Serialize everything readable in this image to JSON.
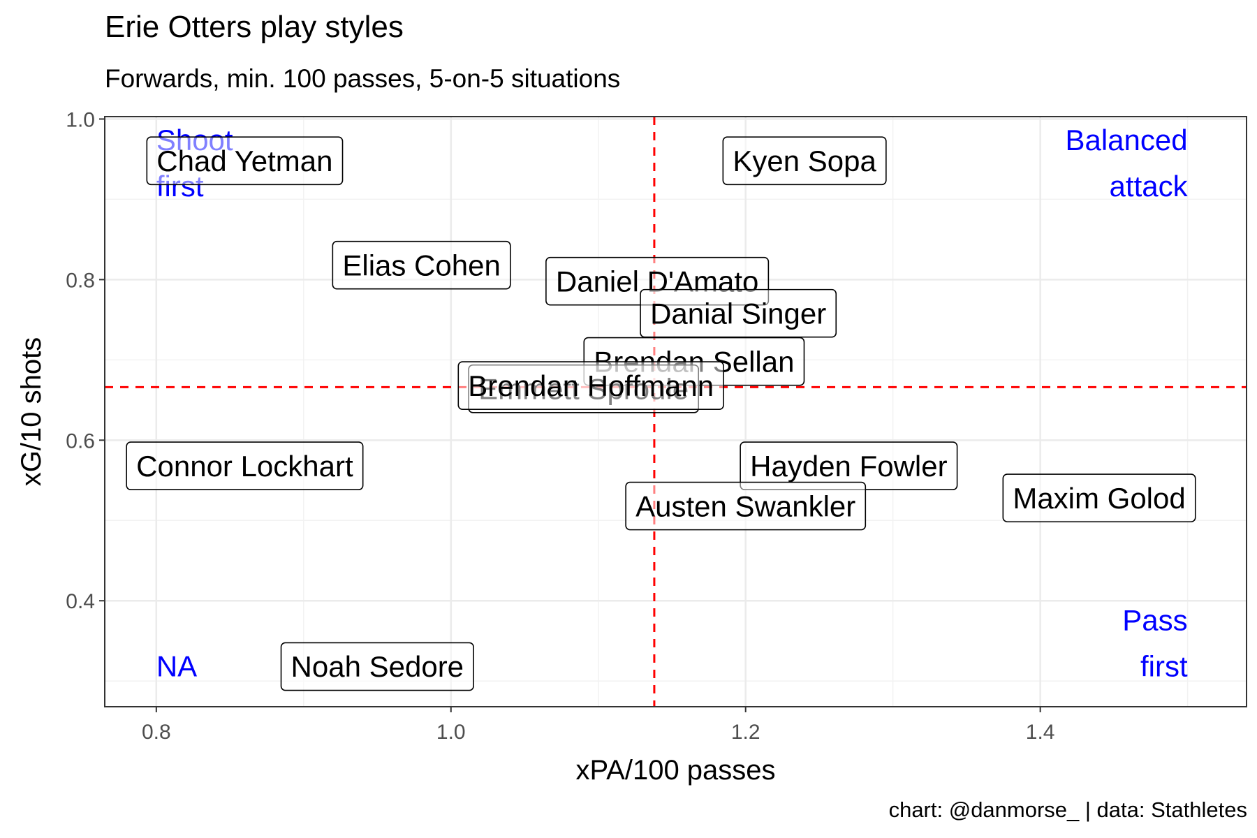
{
  "title": "Erie Otters play styles",
  "subtitle": "Forwards, min. 100 passes, 5-on-5 situations",
  "caption": "chart: @danmorse_ | data: Stathletes",
  "chart_data": {
    "type": "scatter",
    "title": "Erie Otters play styles",
    "subtitle": "Forwards, min. 100 passes, 5-on-5 situations",
    "xlabel": "xPA/100 passes",
    "ylabel": "xG/10 shots",
    "xlim": [
      0.765,
      1.54
    ],
    "ylim": [
      0.268,
      1.003
    ],
    "x_ticks": [
      0.8,
      1.0,
      1.2,
      1.4
    ],
    "x_tick_labels": [
      "0.8",
      "1.0",
      "1.2",
      "1.4"
    ],
    "y_ticks": [
      0.4,
      0.6,
      0.8,
      1.0
    ],
    "y_tick_labels": [
      "0.4",
      "0.6",
      "0.8",
      "1.0"
    ],
    "grid": true,
    "reference_lines": {
      "x": 1.138,
      "y": 0.666,
      "color": "#ff0000",
      "style": "dashed"
    },
    "points": [
      {
        "label": "Chad Yetman",
        "x": 0.86,
        "y": 0.948
      },
      {
        "label": "Kyen Sopa",
        "x": 1.24,
        "y": 0.948
      },
      {
        "label": "Elias Cohen",
        "x": 0.98,
        "y": 0.818
      },
      {
        "label": "Daniel D'Amato",
        "x": 1.14,
        "y": 0.798
      },
      {
        "label": "Danial Singer",
        "x": 1.195,
        "y": 0.758
      },
      {
        "label": "Brendan Sellan",
        "x": 1.165,
        "y": 0.698
      },
      {
        "label": "Emmett Sproule",
        "x": 1.09,
        "y": 0.664
      },
      {
        "label": "Brendan Hoffmann",
        "x": 1.095,
        "y": 0.668
      },
      {
        "label": "Connor Lockhart",
        "x": 0.86,
        "y": 0.568
      },
      {
        "label": "Hayden Fowler",
        "x": 1.27,
        "y": 0.568
      },
      {
        "label": "Maxim Golod",
        "x": 1.44,
        "y": 0.528
      },
      {
        "label": "Austen Swankler",
        "x": 1.2,
        "y": 0.518
      },
      {
        "label": "Noah Sedore",
        "x": 0.95,
        "y": 0.318
      }
    ],
    "quadrant_labels": [
      {
        "lines": [
          "Shoot",
          "first"
        ],
        "position": "top-left",
        "color": "#0000ff"
      },
      {
        "lines": [
          "Balanced",
          "attack"
        ],
        "position": "top-right",
        "color": "#0000ff"
      },
      {
        "lines": [
          "NA"
        ],
        "position": "bottom-left",
        "color": "#0000ff"
      },
      {
        "lines": [
          "Pass",
          "first"
        ],
        "position": "bottom-right",
        "color": "#0000ff"
      }
    ]
  }
}
